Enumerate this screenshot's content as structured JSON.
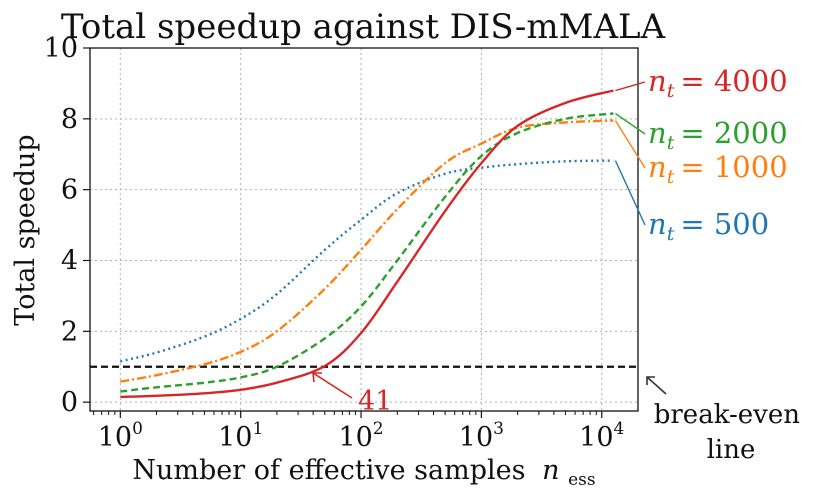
{
  "chart_data": {
    "type": "line",
    "title": "Total speedup against DIS-mMALA",
    "xlabel_main": "Number of effective samples",
    "xlabel_symbol": "n",
    "xlabel_subscript": "ess",
    "ylabel": "Total speedup",
    "xscale": "log",
    "xlim": [
      0.56,
      20000
    ],
    "ylim": [
      -0.25,
      10
    ],
    "grid": true,
    "x_ticks": [
      {
        "value": 1,
        "base": "10",
        "exp": "0"
      },
      {
        "value": 10,
        "base": "10",
        "exp": "1"
      },
      {
        "value": 100,
        "base": "10",
        "exp": "2"
      },
      {
        "value": 1000,
        "base": "10",
        "exp": "3"
      },
      {
        "value": 10000,
        "base": "10",
        "exp": "4"
      }
    ],
    "y_ticks": [
      {
        "value": 0,
        "label": "0"
      },
      {
        "value": 2,
        "label": "2"
      },
      {
        "value": 4,
        "label": "4"
      },
      {
        "value": 6,
        "label": "6"
      },
      {
        "value": 8,
        "label": "8"
      },
      {
        "value": 10,
        "label": "10"
      }
    ],
    "x": [
      1,
      2,
      5,
      10,
      20,
      50,
      100,
      200,
      500,
      1000,
      2000,
      5000,
      12500
    ],
    "series": [
      {
        "name": "nt500",
        "legend_symbol": "n",
        "legend_sub": "t",
        "legend_eq": "= 500",
        "color": "#1f77b4",
        "dash": "2,3.5",
        "values": [
          1.15,
          1.4,
          1.85,
          2.35,
          3.05,
          4.3,
          5.15,
          5.9,
          6.45,
          6.62,
          6.72,
          6.8,
          6.82
        ]
      },
      {
        "name": "nt1000",
        "legend_symbol": "n",
        "legend_sub": "t",
        "legend_eq": "= 1000",
        "color": "#ff7f0e",
        "dash": "9,3,2,3",
        "values": [
          0.58,
          0.76,
          1.07,
          1.42,
          2.0,
          3.2,
          4.3,
          5.45,
          6.75,
          7.3,
          7.75,
          7.9,
          7.95
        ]
      },
      {
        "name": "nt2000",
        "legend_symbol": "n",
        "legend_sub": "t",
        "legend_eq": "= 2000",
        "color": "#2ca02c",
        "dash": "7,4",
        "values": [
          0.3,
          0.42,
          0.55,
          0.7,
          1.0,
          1.8,
          2.7,
          4.0,
          5.8,
          6.95,
          7.6,
          8.0,
          8.15
        ]
      },
      {
        "name": "nt4000",
        "legend_symbol": "n",
        "legend_sub": "t",
        "legend_eq": "= 4000",
        "color": "#d62728",
        "dash": "",
        "values": [
          0.15,
          0.18,
          0.25,
          0.35,
          0.55,
          1.02,
          1.95,
          3.4,
          5.4,
          6.75,
          7.8,
          8.45,
          8.8
        ]
      }
    ],
    "break_even": {
      "y": 1,
      "label_line1": "break-even",
      "label_line2": "line"
    },
    "annotation": {
      "text": "41",
      "x": 41,
      "y": 1
    }
  }
}
